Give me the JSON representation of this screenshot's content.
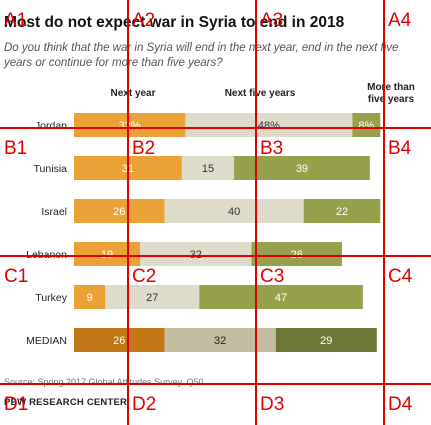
{
  "header": {
    "title": "Most do not expect war in Syria to end in 2018",
    "subtitle": "Do you think that the war in Syria will end in the next year, end in the next five years or continue for more than five years?"
  },
  "chart_data": {
    "type": "bar",
    "orientation": "horizontal",
    "stacked": true,
    "categories": [
      "Jordan",
      "Tunisia",
      "Israel",
      "Lebanon",
      "Turkey",
      "MEDIAN"
    ],
    "series": [
      {
        "name": "Next year",
        "values": [
          32,
          31,
          26,
          19,
          9,
          26
        ],
        "labels": [
          "32%",
          "31",
          "26",
          "19",
          "9",
          "26"
        ]
      },
      {
        "name": "Next five years",
        "values": [
          48,
          15,
          40,
          32,
          27,
          32
        ],
        "labels": [
          "48%",
          "15",
          "40",
          "32",
          "27",
          "32"
        ]
      },
      {
        "name": "More than five years",
        "values": [
          8,
          39,
          22,
          26,
          47,
          29
        ],
        "labels": [
          "8%",
          "39",
          "22",
          "26",
          "47",
          "29"
        ]
      }
    ],
    "colors": {
      "next_year": "#eaa136",
      "next_five_years": "#dedbcb",
      "more_than_five": "#97a04b",
      "median_next_year": "#c27615",
      "median_next_five_years": "#c5bda2",
      "median_more_than_five": "#6e7637"
    },
    "legend": "column headers above bars",
    "grid": false
  },
  "footer": {
    "source": "Source: Spring 2017 Global Attitudes Survey. Q50.",
    "org": "PEW RESEARCH CENTER"
  },
  "overlay_grid": {
    "labels": [
      "A1",
      "A2",
      "A3",
      "A4",
      "B1",
      "B2",
      "B3",
      "B4",
      "C1",
      "C2",
      "C3",
      "C4",
      "D1",
      "D2",
      "D3",
      "D4"
    ],
    "color": "#e00000"
  }
}
